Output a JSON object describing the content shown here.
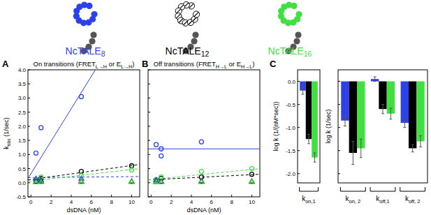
{
  "constructs": [
    {
      "label": [
        {
          "t": "NcTALE"
        },
        {
          "t": "8",
          "sub": true
        }
      ],
      "color": "#2c41e8"
    },
    {
      "label": [
        {
          "t": "NcTALE"
        },
        {
          "t": "12",
          "sub": true
        }
      ],
      "color": "#000000"
    },
    {
      "label": [
        {
          "t": "NcTALE"
        },
        {
          "t": "16",
          "sub": true
        }
      ],
      "color": "#3fe03f"
    }
  ],
  "chart_data": [
    {
      "type": "scatter",
      "annotations": [
        "A"
      ],
      "title": [
        {
          "t": "On transitions (FRET"
        },
        {
          "t": "L→H",
          "sub": true
        },
        {
          "t": " or E"
        },
        {
          "t": "L→H",
          "sub": true
        },
        {
          "t": ")"
        }
      ],
      "x_label": "dsDNA (nM)",
      "y_label": [
        {
          "t": "k"
        },
        {
          "t": "obs",
          "sub": true
        },
        {
          "t": " (1/sec)"
        }
      ],
      "xlim": [
        -0.3,
        10.8
      ],
      "xticks": [
        0,
        2,
        4,
        6,
        8,
        10
      ],
      "ylim": [
        -0.5,
        4.0
      ],
      "yticks": [
        -0.5,
        {
          "value": 0,
          "label": "0.0"
        },
        0.5,
        {
          "value": 1,
          "label": "1.0"
        },
        1.5,
        {
          "value": 2,
          "label": "2.0"
        },
        2.5,
        {
          "value": 3,
          "label": "3.0"
        },
        3.5,
        {
          "value": 4,
          "label": "4.0"
        }
      ],
      "series": [
        {
          "type": "line",
          "line_style": "solid",
          "color": "#2c41e8",
          "x": [
            -0.3,
            6.4
          ],
          "values": [
            0.15,
            4.0
          ]
        },
        {
          "type": "line",
          "line_style": "dashed",
          "color": "#2c41e8",
          "x": [
            -0.3,
            10.8
          ],
          "values": [
            0.18,
            0.22
          ]
        },
        {
          "type": "line",
          "line_style": "dashed",
          "color": "#000000",
          "x": [
            -0.3,
            10.8
          ],
          "values": [
            0.1,
            0.65
          ]
        },
        {
          "type": "line",
          "line_style": "dashed",
          "color": "#3fe03f",
          "x": [
            -0.3,
            10.8
          ],
          "values": [
            0.05,
            0.5
          ]
        },
        {
          "type": "scatter",
          "marker": "circle",
          "color": "#2c41e8",
          "x": [
            0.5,
            1,
            5
          ],
          "values": [
            1.05,
            1.95,
            3.05
          ]
        },
        {
          "type": "scatter",
          "marker": "circle",
          "color": "#000000",
          "x": [
            0.5,
            1,
            5,
            10
          ],
          "values": [
            0.05,
            0.15,
            0.4,
            0.6
          ]
        },
        {
          "type": "scatter",
          "marker": "circle",
          "color": "#3fe03f",
          "x": [
            0.5,
            1,
            5,
            10
          ],
          "values": [
            0.1,
            0.2,
            0.25,
            0.45
          ]
        },
        {
          "type": "scatter",
          "marker": "triangle",
          "color": "#2c41e8",
          "x": [
            0.5,
            1,
            5
          ],
          "values": [
            0.15,
            0.1,
            0.15
          ]
        },
        {
          "type": "scatter",
          "marker": "triangle",
          "color": "#000000",
          "x": [
            0.5,
            1,
            5,
            10
          ],
          "values": [
            0.03,
            0.05,
            0.05,
            0.05
          ]
        },
        {
          "type": "scatter",
          "marker": "triangle",
          "color": "#3fe03f",
          "x": [
            0.5,
            1,
            5,
            10
          ],
          "values": [
            0.02,
            0.03,
            0.03,
            0.03
          ]
        }
      ]
    },
    {
      "type": "scatter",
      "annotations": [
        "B"
      ],
      "title": [
        {
          "t": "Off transitions (FRET"
        },
        {
          "t": "H→L",
          "sub": true
        },
        {
          "t": " or E"
        },
        {
          "t": "H→L",
          "sub": true
        },
        {
          "t": ")"
        }
      ],
      "x_label": "dsDNA (nM)",
      "tick_labels": "x",
      "xlim": [
        -0.3,
        10.8
      ],
      "xticks": [
        0,
        2,
        4,
        6,
        8,
        10
      ],
      "ylim": [
        -0.5,
        4.0
      ],
      "yticks": [
        -0.5,
        0,
        0.5,
        1,
        1.5,
        2,
        2.5,
        3,
        3.5,
        4
      ],
      "series": [
        {
          "type": "line",
          "line_style": "solid",
          "color": "#2c41e8",
          "x": [
            -0.3,
            10.8
          ],
          "values": [
            1.2,
            1.2
          ]
        },
        {
          "type": "line",
          "line_style": "dashed",
          "color": "#000000",
          "x": [
            -0.3,
            10.8
          ],
          "values": [
            0.1,
            0.3
          ]
        },
        {
          "type": "line",
          "line_style": "dashed",
          "color": "#3fe03f",
          "x": [
            -0.3,
            10.8
          ],
          "values": [
            0.1,
            0.5
          ]
        },
        {
          "type": "scatter",
          "marker": "circle",
          "color": "#2c41e8",
          "x": [
            0.5,
            1,
            1,
            5
          ],
          "values": [
            1.35,
            1.2,
            0.95,
            1.45
          ]
        },
        {
          "type": "scatter",
          "marker": "circle",
          "color": "#000000",
          "x": [
            0.5,
            1,
            5,
            10
          ],
          "values": [
            0.1,
            0.15,
            0.2,
            0.3
          ]
        },
        {
          "type": "scatter",
          "marker": "circle",
          "color": "#3fe03f",
          "x": [
            0.5,
            1,
            5,
            10
          ],
          "values": [
            0.1,
            0.2,
            0.4,
            0.5
          ]
        },
        {
          "type": "scatter",
          "marker": "triangle",
          "color": "#2c41e8",
          "x": [
            0.5,
            1,
            5
          ],
          "values": [
            0.1,
            0.05,
            0.05
          ]
        },
        {
          "type": "scatter",
          "marker": "triangle",
          "color": "#000000",
          "x": [
            0.5,
            1,
            5,
            10
          ],
          "values": [
            0.03,
            0.03,
            0.05,
            0.05
          ]
        },
        {
          "type": "scatter",
          "marker": "triangle",
          "color": "#3fe03f",
          "x": [
            0.5,
            1,
            5,
            10
          ],
          "values": [
            0.02,
            0.02,
            0.03,
            0.03
          ]
        }
      ]
    },
    {
      "type": "bar",
      "annotations": [
        "C"
      ],
      "y_label": "log k (1/(nM*sec))",
      "categories": [
        [
          {
            "t": "k"
          },
          {
            "t": "on,1",
            "sub": true
          }
        ]
      ],
      "ylim": [
        -2.2,
        0.25
      ],
      "yticks": [
        {
          "value": -2,
          "label": "-2.0"
        },
        -1.5,
        {
          "value": -1,
          "label": "-1.0"
        },
        -0.5,
        {
          "value": 0,
          "label": "0.0"
        }
      ],
      "series": [
        {
          "color": "#2c41e8",
          "values": [
            -0.2
          ],
          "errors": [
            0.08
          ]
        },
        {
          "color": "#000000",
          "values": [
            -1.25
          ],
          "errors": [
            0.1
          ]
        },
        {
          "color": "#3fe03f",
          "values": [
            -1.65
          ],
          "errors": [
            0.1
          ]
        }
      ]
    },
    {
      "type": "bar",
      "tick_labels": "x",
      "y_label": "log k (1/sec)",
      "categories": [
        [
          {
            "t": "k"
          },
          {
            "t": "on, 2",
            "sub": true
          }
        ],
        [
          {
            "t": "k"
          },
          {
            "t": "off,1",
            "sub": true
          }
        ],
        [
          {
            "t": "k"
          },
          {
            "t": "off, 2",
            "sub": true
          }
        ]
      ],
      "ylim": [
        -2.2,
        0.25
      ],
      "yticks": [
        -2,
        -1.5,
        -1,
        -0.5,
        0
      ],
      "series": [
        {
          "color": "#2c41e8",
          "values": [
            -0.85,
            0.05,
            -0.9
          ],
          "errors": [
            0.12,
            0.05,
            0.1
          ]
        },
        {
          "color": "#000000",
          "values": [
            -1.55,
            -0.6,
            -1.45
          ],
          "errors": [
            0.25,
            0.1,
            0.08
          ]
        },
        {
          "color": "#3fe03f",
          "values": [
            -1.45,
            -0.7,
            -1.3
          ],
          "errors": [
            0.2,
            0.12,
            0.12
          ]
        }
      ]
    }
  ]
}
